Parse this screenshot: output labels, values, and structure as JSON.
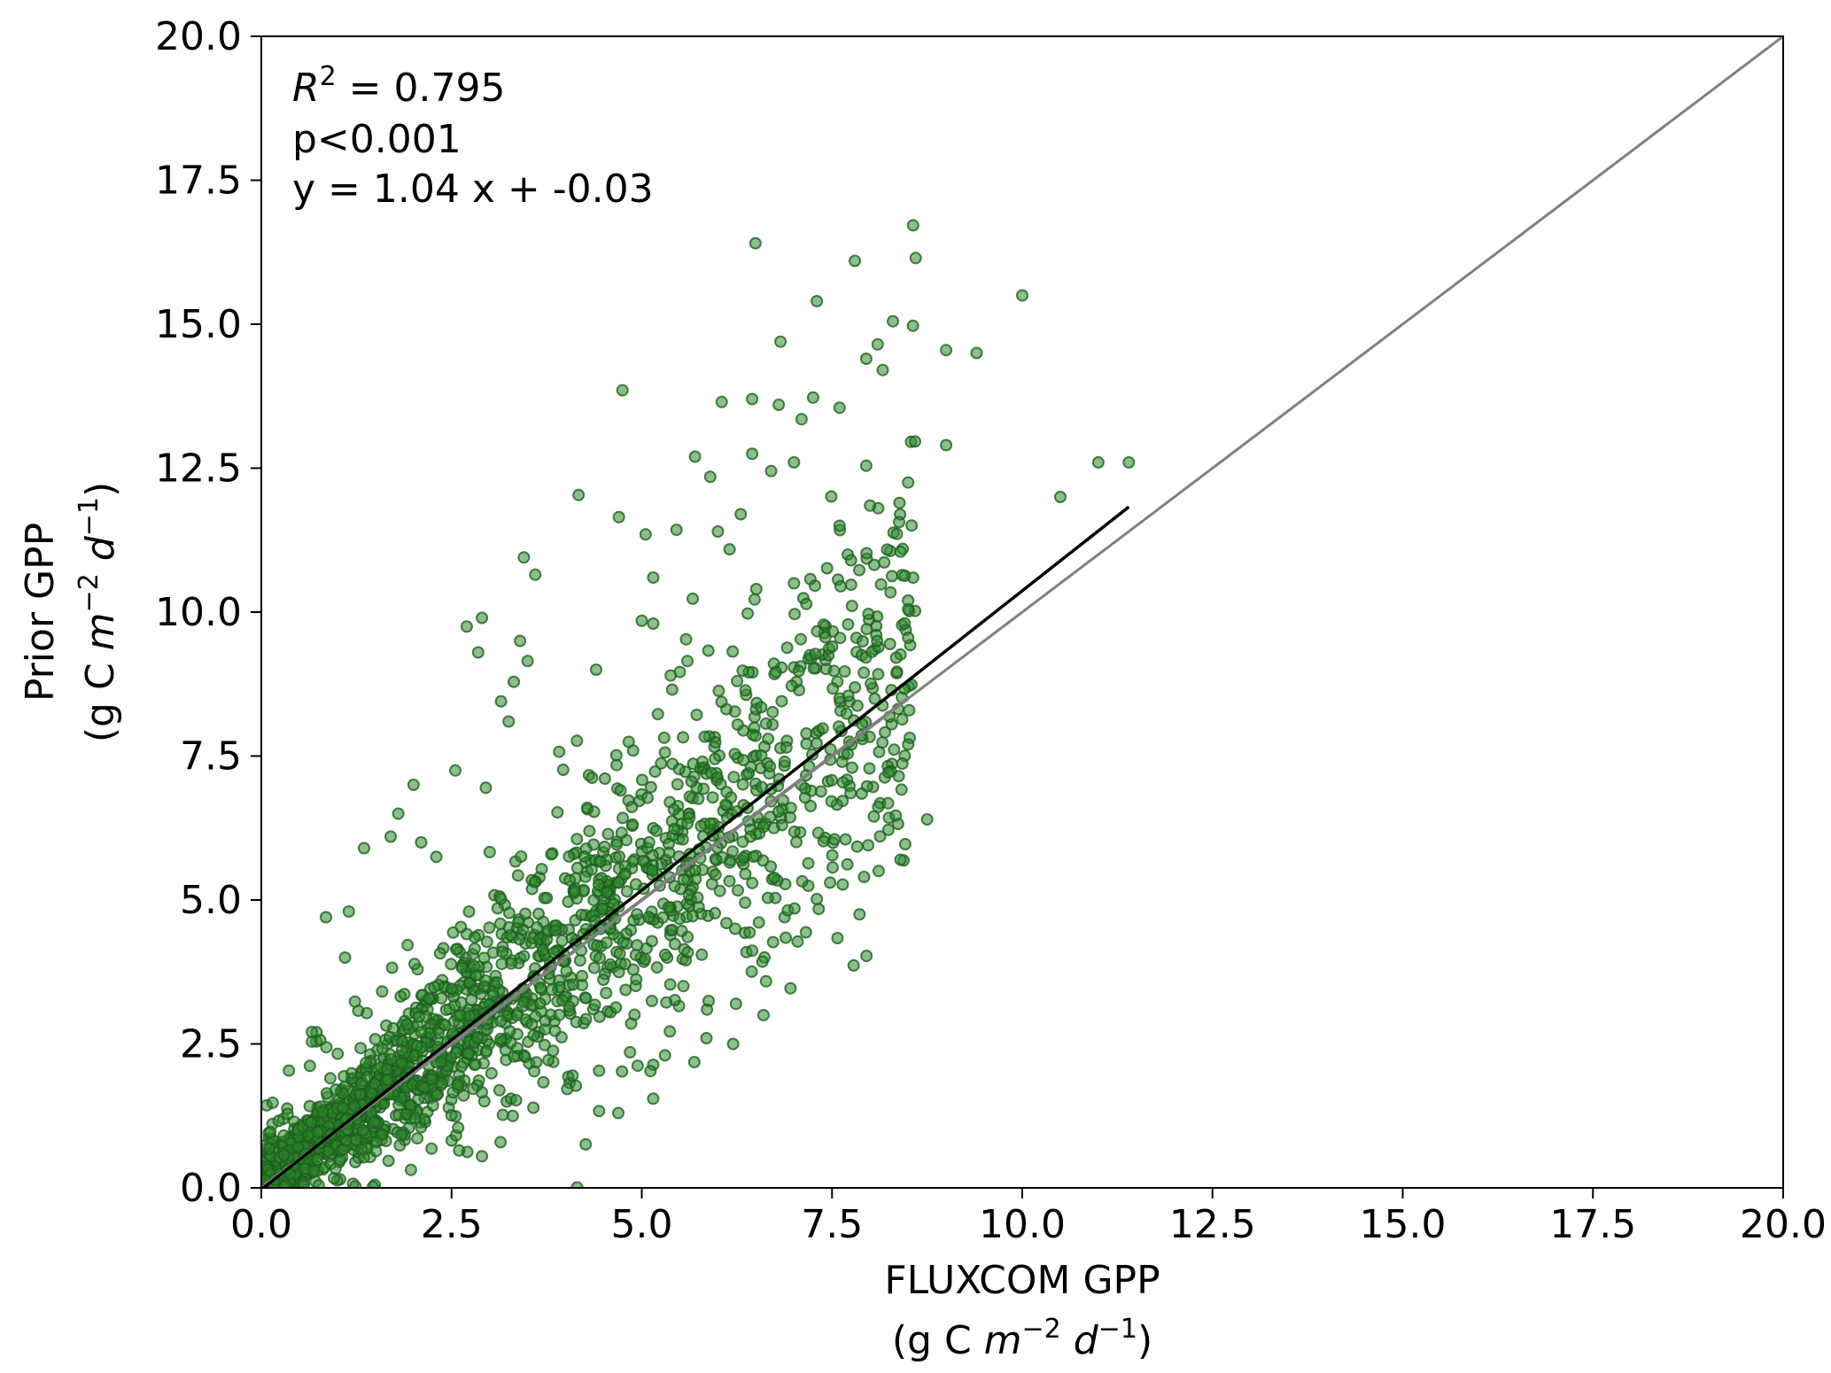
{
  "chart_data": {
    "type": "scatter",
    "xlim": [
      0,
      20
    ],
    "ylim": [
      0,
      20
    ],
    "xticks": [
      "0.0",
      "2.5",
      "5.0",
      "7.5",
      "10.0",
      "12.5",
      "15.0",
      "17.5",
      "20.0"
    ],
    "yticks": [
      "0.0",
      "2.5",
      "5.0",
      "7.5",
      "10.0",
      "12.5",
      "15.0",
      "17.5",
      "20.0"
    ],
    "xlabel": {
      "line1": "FLUXCOM GPP",
      "line2_prefix": "(g C ",
      "m": "m",
      "m_exp": "−2",
      "d": "d",
      "d_exp": "−1",
      "suffix": ")"
    },
    "ylabel": {
      "line1": "Prior GPP",
      "line2_prefix": "(g C ",
      "m": "m",
      "m_exp": "−2",
      "d": "d",
      "d_exp": "−1",
      "suffix": ")"
    },
    "annotations": {
      "r2_symbol": "R",
      "r2_exp": "2",
      "r2_value": " = 0.795",
      "pvalue": "p<0.001",
      "equation": "y = 1.04 x + -0.03"
    },
    "regression": {
      "slope": 1.04,
      "intercept": -0.03,
      "x_range": [
        0,
        11.4
      ],
      "color": "#000000"
    },
    "identity_line": {
      "x_range": [
        0,
        20
      ],
      "color": "#808080"
    },
    "inner_identity_segment": {
      "x_range": [
        0.05,
        8.5
      ],
      "color": "#808080"
    },
    "point_style": {
      "fill": "#2e8b2e",
      "edge": "#1f5f1f",
      "opacity": 0.55
    },
    "grid": false,
    "notable_points": [
      [
        7.8,
        16.1
      ],
      [
        8.6,
        16.15
      ],
      [
        10.0,
        15.5
      ],
      [
        7.3,
        15.4
      ],
      [
        8.3,
        15.05
      ],
      [
        8.1,
        14.65
      ],
      [
        7.95,
        14.4
      ],
      [
        9.0,
        14.55
      ],
      [
        9.4,
        14.5
      ],
      [
        6.45,
        13.7
      ],
      [
        6.05,
        13.65
      ],
      [
        6.8,
        13.6
      ],
      [
        7.1,
        13.35
      ],
      [
        7.6,
        13.55
      ],
      [
        9.0,
        12.9
      ],
      [
        11.0,
        12.6
      ],
      [
        11.4,
        12.6
      ],
      [
        5.7,
        12.7
      ],
      [
        6.45,
        12.75
      ],
      [
        7.0,
        12.6
      ],
      [
        6.7,
        12.45
      ],
      [
        5.9,
        12.35
      ],
      [
        8.5,
        12.25
      ],
      [
        10.5,
        12.0
      ],
      [
        8.0,
        11.85
      ],
      [
        6.3,
        11.7
      ],
      [
        4.7,
        11.65
      ],
      [
        7.6,
        11.5
      ],
      [
        5.05,
        11.35
      ],
      [
        6.0,
        11.4
      ],
      [
        3.45,
        10.95
      ],
      [
        3.6,
        10.65
      ],
      [
        5.15,
        10.6
      ],
      [
        8.4,
        11.05
      ],
      [
        7.75,
        10.9
      ],
      [
        7.0,
        10.5
      ],
      [
        4.4,
        9.0
      ],
      [
        2.7,
        9.75
      ],
      [
        2.9,
        9.9
      ],
      [
        3.4,
        9.5
      ],
      [
        2.85,
        9.3
      ],
      [
        3.5,
        9.15
      ],
      [
        3.15,
        8.45
      ],
      [
        3.25,
        8.1
      ],
      [
        5.0,
        9.85
      ],
      [
        5.15,
        9.8
      ],
      [
        5.6,
        9.15
      ],
      [
        8.5,
        10.2
      ],
      [
        8.5,
        10.05
      ],
      [
        2.0,
        7.0
      ],
      [
        2.55,
        7.25
      ],
      [
        2.95,
        6.95
      ],
      [
        1.8,
        6.5
      ],
      [
        1.7,
        6.1
      ],
      [
        2.1,
        6.0
      ],
      [
        1.35,
        5.9
      ],
      [
        2.3,
        5.75
      ],
      [
        0.85,
        4.7
      ],
      [
        1.15,
        4.8
      ],
      [
        1.1,
        4.0
      ],
      [
        5.15,
        1.55
      ],
      [
        6.2,
        2.5
      ],
      [
        5.85,
        2.6
      ],
      [
        2.9,
        0.55
      ],
      [
        2.6,
        0.65
      ],
      [
        6.6,
        3.0
      ],
      [
        8.75,
        6.4
      ],
      [
        8.5,
        7.7
      ],
      [
        8.4,
        5.7
      ],
      [
        8.05,
        6.45
      ],
      [
        7.6,
        8.5
      ],
      [
        7.5,
        9.4
      ]
    ],
    "cloud_count": 2200,
    "cloud_seed": 12345
  }
}
